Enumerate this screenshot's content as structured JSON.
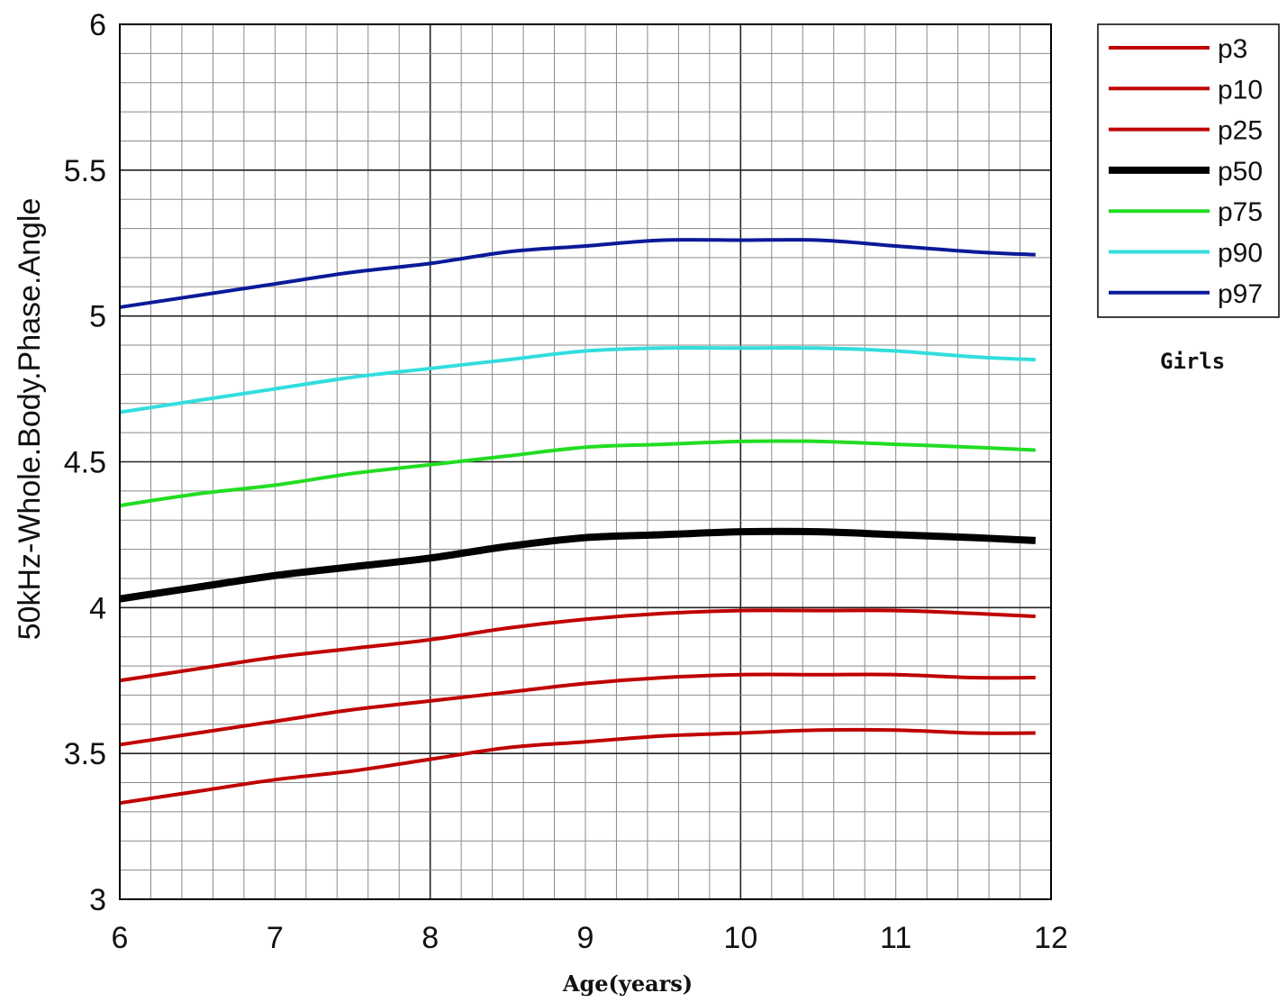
{
  "chart_data": {
    "type": "line",
    "title": "",
    "xlabel": "Age(years)",
    "ylabel": "50kHz-Whole.Body.Phase.Angle",
    "xlim": [
      6,
      12
    ],
    "ylim": [
      3,
      6
    ],
    "xticks": [
      "6",
      "7",
      "8",
      "9",
      "10",
      "11",
      "12"
    ],
    "yticks": [
      "3",
      "3.5",
      "4",
      "4.5",
      "5",
      "5.5",
      "6"
    ],
    "grid": true,
    "legend_position": "top-right (outside plot)",
    "annotation": "Girls",
    "x": [
      6,
      6.5,
      7,
      7.5,
      8,
      8.5,
      9,
      9.5,
      10,
      10.5,
      11,
      11.5,
      11.9
    ],
    "series": [
      {
        "name": "p3",
        "color": "#c00000",
        "values": [
          3.33,
          3.37,
          3.41,
          3.44,
          3.48,
          3.52,
          3.54,
          3.56,
          3.57,
          3.58,
          3.58,
          3.57,
          3.57
        ]
      },
      {
        "name": "p10",
        "color": "#c00000",
        "values": [
          3.53,
          3.57,
          3.61,
          3.65,
          3.68,
          3.71,
          3.74,
          3.76,
          3.77,
          3.77,
          3.77,
          3.76,
          3.76
        ]
      },
      {
        "name": "p25",
        "color": "#c00000",
        "values": [
          3.75,
          3.79,
          3.83,
          3.86,
          3.89,
          3.93,
          3.96,
          3.98,
          3.99,
          3.99,
          3.99,
          3.98,
          3.97
        ]
      },
      {
        "name": "p50",
        "color": "#000000",
        "values": [
          4.03,
          4.07,
          4.11,
          4.14,
          4.17,
          4.21,
          4.24,
          4.25,
          4.26,
          4.26,
          4.25,
          4.24,
          4.23
        ]
      },
      {
        "name": "p75",
        "color": "#22dd22",
        "values": [
          4.35,
          4.39,
          4.42,
          4.46,
          4.49,
          4.52,
          4.55,
          4.56,
          4.57,
          4.57,
          4.56,
          4.55,
          4.54
        ]
      },
      {
        "name": "p90",
        "color": "#33dddd",
        "values": [
          4.67,
          4.71,
          4.75,
          4.79,
          4.82,
          4.85,
          4.88,
          4.89,
          4.89,
          4.89,
          4.88,
          4.86,
          4.85
        ]
      },
      {
        "name": "p97",
        "color": "#0a1a99",
        "values": [
          5.03,
          5.07,
          5.11,
          5.15,
          5.18,
          5.22,
          5.24,
          5.26,
          5.26,
          5.26,
          5.24,
          5.22,
          5.21
        ]
      }
    ]
  }
}
